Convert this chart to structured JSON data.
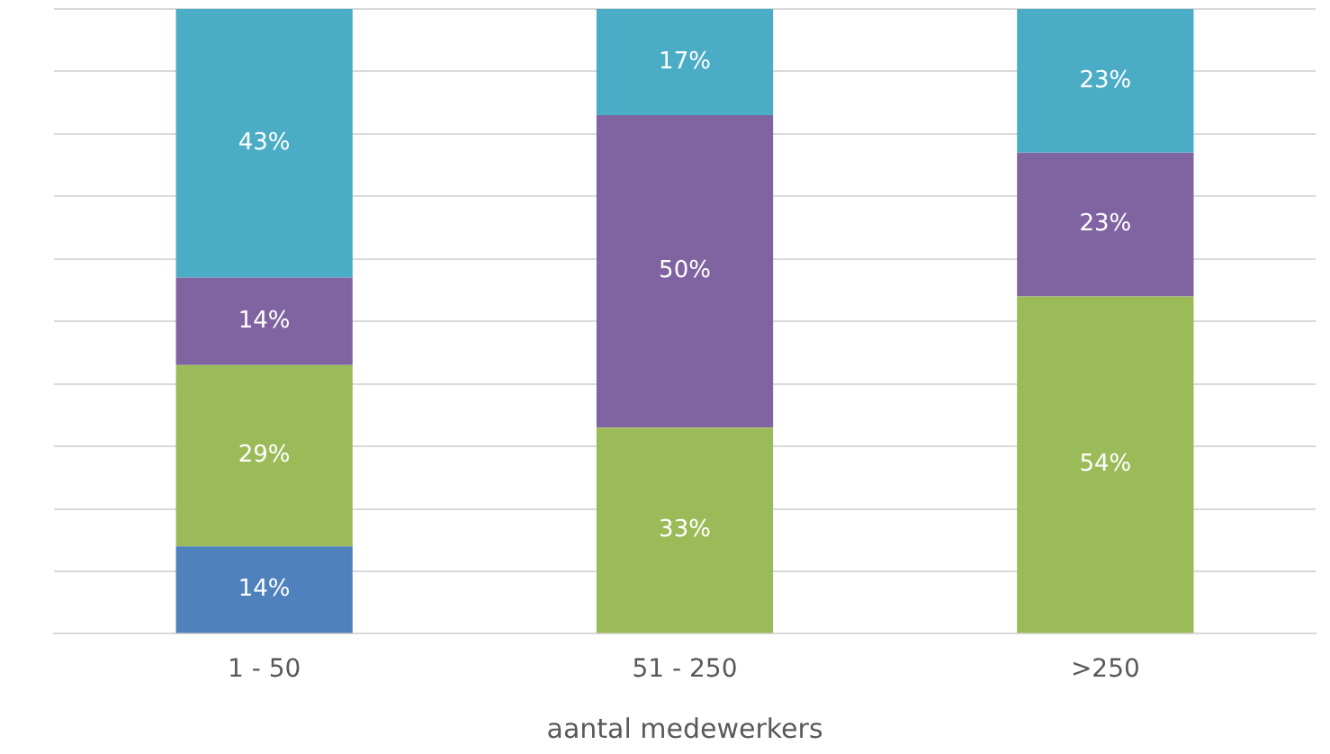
{
  "chart_data": {
    "type": "bar",
    "stacked": true,
    "xlabel": "aantal medewerkers",
    "categories": [
      "1 - 50",
      "51 - 250",
      ">250"
    ],
    "series": [
      {
        "color": "#4f81bd",
        "values": [
          14,
          0,
          0
        ],
        "value_labels": [
          "14%",
          null,
          null
        ]
      },
      {
        "color": "#9bbb59",
        "values": [
          29,
          33,
          54
        ],
        "value_labels": [
          "29%",
          "33%",
          "54%"
        ]
      },
      {
        "color": "#8064a2",
        "values": [
          14,
          50,
          23
        ],
        "value_labels": [
          "14%",
          "50%",
          "23%"
        ]
      },
      {
        "color": "#4bacc6",
        "values": [
          43,
          17,
          23
        ],
        "value_labels": [
          "43%",
          "17%",
          "23%"
        ]
      }
    ],
    "ylim": [
      0,
      100
    ],
    "yticks": [
      {
        "value": 0,
        "label": null
      },
      {
        "value": 10,
        "label": null
      },
      {
        "value": 20,
        "label": null
      },
      {
        "value": 30,
        "label": null
      },
      {
        "value": 40,
        "label": null
      },
      {
        "value": 50,
        "label": null
      },
      {
        "value": 60,
        "label": null
      },
      {
        "value": 70,
        "label": null
      },
      {
        "value": 80,
        "label": null
      },
      {
        "value": 90,
        "label": null
      },
      {
        "value": 100,
        "label": null
      }
    ],
    "grid": "y",
    "tick_labels": "x",
    "legend": false
  }
}
